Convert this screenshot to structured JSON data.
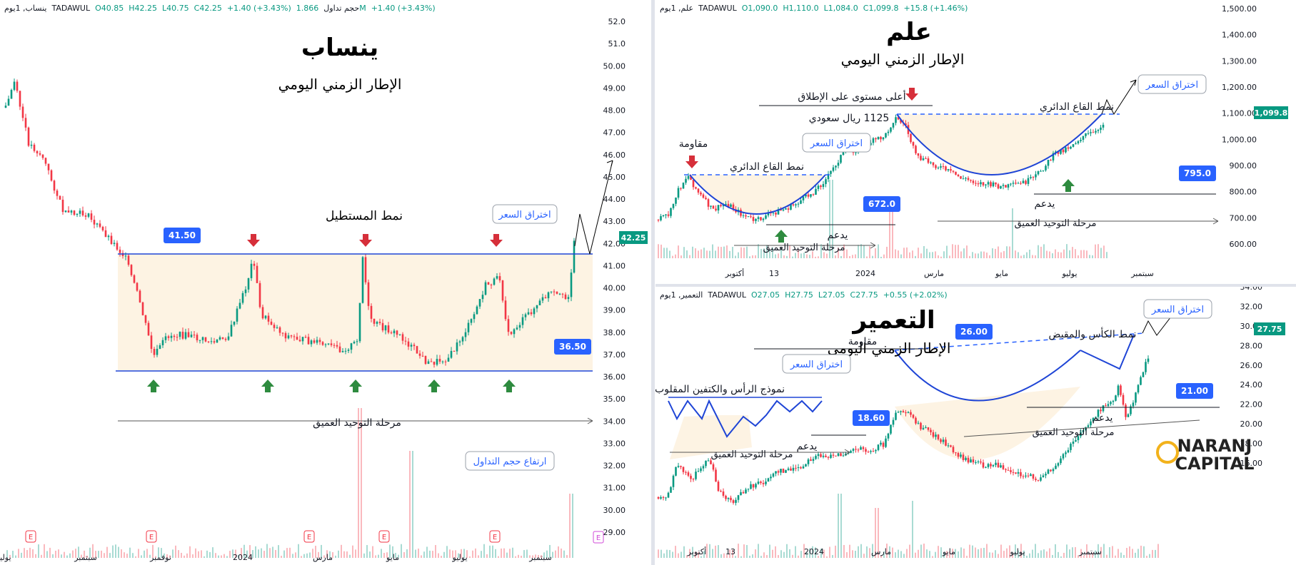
{
  "colors": {
    "up": "#089981",
    "down": "#f23645",
    "line": "#1f45d6",
    "dash": "#2962ff",
    "box": "#fdf3e3",
    "badge": "#2962ff",
    "red_arrow": "#d62f3a",
    "green_arrow": "#2e8b3f",
    "label": "#2962ff",
    "watermark": "#f2b21b"
  },
  "panels": [
    {
      "id": "yansab",
      "header": {
        "name": "ينساب, 1يوم",
        "exchange": "TADAWUL",
        "o": "O40.85",
        "h": "H42.25",
        "l": "L40.75",
        "c": "C42.25",
        "chg": "+1.40 (+3.43%)",
        "vol_label": "حجم تداول",
        "vol": "1.866M",
        "vol_chg": "+1.40 (+3.43%)"
      },
      "title": "ينساب",
      "subtitle": "الإطار الزمني اليومي",
      "last_price": "42.25",
      "y_axis": [
        "52.0",
        "51.0",
        "50.00",
        "49.00",
        "48.00",
        "47.00",
        "46.00",
        "45.00",
        "44.00",
        "43.00",
        "42.00",
        "41.00",
        "40.00",
        "39.00",
        "38.00",
        "37.00",
        "36.00",
        "35.00",
        "34.00",
        "33.00",
        "32.00",
        "31.00",
        "30.00",
        "29.00"
      ],
      "x_axis": [
        "يوليو",
        "سبتمبر",
        "نوفمبر",
        "2024",
        "مارس",
        "مايو",
        "يوليو",
        "سبتمبر"
      ],
      "annotations": {
        "pattern": "نمط المستطيل",
        "breakout": "اختراق السعر",
        "consolidation": "مرحلة التوحيد العميق",
        "volume": "ارتفاع حجم التداول"
      },
      "badges": [
        "41.50",
        "36.50"
      ],
      "earnings": [
        "E",
        "E",
        "E",
        "E",
        "E",
        "E"
      ]
    },
    {
      "id": "elm",
      "header": {
        "name": "علم, 1يوم",
        "exchange": "TADAWUL",
        "o": "O1,090.0",
        "h": "H1,110.0",
        "l": "L1,084.0",
        "c": "C1,099.8",
        "chg": "+15.8 (+1.46%)"
      },
      "title": "علم",
      "subtitle": "الإطار الزمني اليومي",
      "last_price": "1,099.8",
      "y_axis": [
        "1,500.00",
        "1,400.00",
        "1,300.00",
        "1,200.00",
        "1,100.00",
        "1,000.00",
        "900.00",
        "800.00",
        "700.00",
        "600.00"
      ],
      "x_axis": [
        "أكتوبر",
        "13",
        "2024",
        "مارس",
        "مايو",
        "يوليو",
        "سبتمبر"
      ],
      "annotations": {
        "resistance": "مقاومة",
        "pattern1": "نمط القاع الدائري",
        "breakout1": "اختراق السعر",
        "ath": "أعلى مستوى على الإطلاق",
        "ath_price": "1125 ريال سعودي",
        "pattern2": "نمط القاع الدائري",
        "breakout2": "اختراق السعر",
        "support1": "يدعم",
        "support2": "يدعم",
        "consolidation1": "مرحلة التوحيد العميق",
        "consolidation2": "مرحلة التوحيد العميق"
      },
      "badges": [
        "672.0",
        "795.0"
      ]
    },
    {
      "id": "taameer",
      "header": {
        "name": "التعمير, 1يوم",
        "exchange": "TADAWUL",
        "o": "O27.05",
        "h": "H27.75",
        "l": "L27.05",
        "c": "C27.75",
        "chg": "+0.55 (+2.02%)"
      },
      "title": "التعمير",
      "subtitle": "الإطار الزمني اليومي",
      "last_price": "27.75",
      "y_axis": [
        "34.00",
        "32.00",
        "30.00",
        "28.00",
        "26.00",
        "24.00",
        "22.00",
        "20.00",
        "18.00",
        "16.00"
      ],
      "x_axis": [
        "أكتوبر",
        "13",
        "2024",
        "مارس",
        "مايو",
        "يوليو",
        "سبتمبر"
      ],
      "annotations": {
        "ihs": "نموذج الرأس والكتفين المقلوب",
        "breakout1": "اختراق السعر",
        "resistance": "مقاومة",
        "cup": "نمط الكأس والمقبض",
        "breakout2": "اختراق السعر",
        "support1": "يدعم",
        "support2": "يدعم",
        "consolidation1": "مرحلة التوحيد العميق",
        "consolidation2": "مرحلة التوحيد العميق"
      },
      "badges": [
        "18.60",
        "26.00",
        "21.00"
      ]
    }
  ],
  "watermark": {
    "line1": "NARANJ",
    "line2": "CAPITAL"
  }
}
